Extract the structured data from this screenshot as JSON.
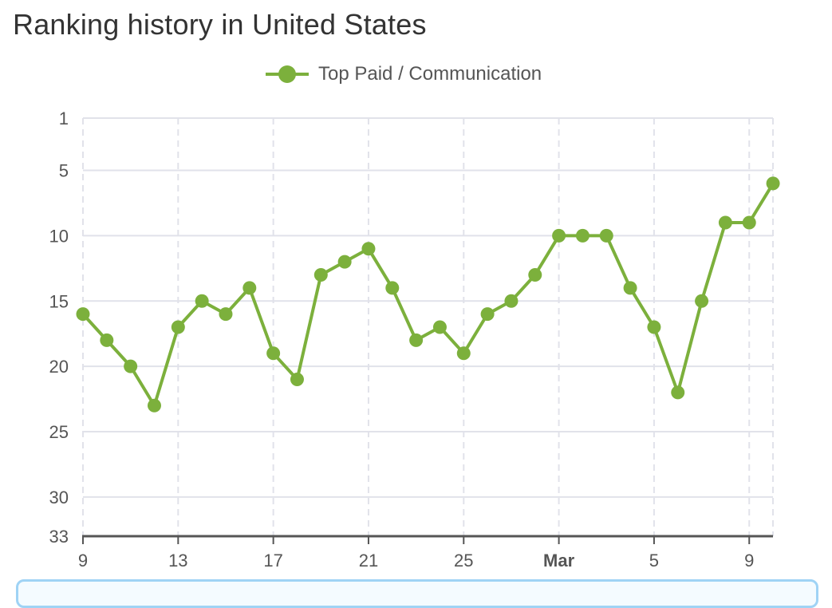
{
  "page": {
    "title": "Ranking history in United States"
  },
  "legend": {
    "label": "Top Paid / Communication",
    "color": "#7cb03c"
  },
  "colors": {
    "series": "#7cb03c",
    "grid": "#e1e2ea",
    "axis": "#555555",
    "text": "#555555",
    "title": "#333333"
  },
  "chart_data": {
    "type": "line",
    "title": "Ranking history in United States",
    "xlabel": "",
    "ylabel": "",
    "y_inverted": true,
    "ylim": [
      1,
      33
    ],
    "y_ticks": [
      1,
      5,
      10,
      15,
      20,
      25,
      30,
      33
    ],
    "x_tick_labels": [
      "9",
      "13",
      "17",
      "21",
      "25",
      "Mar",
      "5",
      "9"
    ],
    "grid": {
      "horizontal": "solid",
      "vertical": "dashed"
    },
    "legend_position": "top-center",
    "x": [
      "Feb 9",
      "Feb 10",
      "Feb 11",
      "Feb 12",
      "Feb 13",
      "Feb 14",
      "Feb 15",
      "Feb 16",
      "Feb 17",
      "Feb 18",
      "Feb 19",
      "Feb 20",
      "Feb 21",
      "Feb 22",
      "Feb 23",
      "Feb 24",
      "Feb 25",
      "Feb 26",
      "Feb 27",
      "Feb 28",
      "Mar 1",
      "Mar 2",
      "Mar 3",
      "Mar 4",
      "Mar 5",
      "Mar 6",
      "Mar 7",
      "Mar 8",
      "Mar 9",
      "Mar 10"
    ],
    "series": [
      {
        "name": "Top Paid / Communication",
        "values": [
          16,
          18,
          20,
          23,
          17,
          15,
          16,
          14,
          19,
          21,
          13,
          12,
          11,
          14,
          18,
          17,
          19,
          16,
          15,
          13,
          10,
          10,
          10,
          14,
          17,
          22,
          15,
          9,
          9,
          6
        ]
      }
    ]
  }
}
